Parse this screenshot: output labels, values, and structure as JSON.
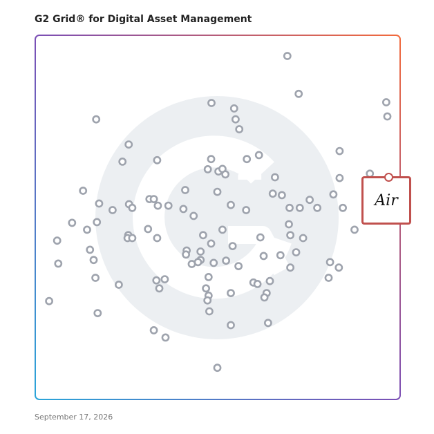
{
  "header": {
    "title": "G2 Grid® for Digital Asset Management"
  },
  "footer": {
    "date": "September 17, 2026"
  },
  "featured": {
    "name": "Air",
    "logo_text": "Air",
    "highlight_color": "#c0504d"
  },
  "colors": {
    "point_stroke": "#9ea3ad",
    "watermark": "#eceff2",
    "axis_line": "#8a63a8"
  },
  "chart_data": {
    "type": "scatter",
    "title": "G2 Grid® for Digital Asset Management",
    "xlabel": "",
    "ylabel": "",
    "xlim": [
      0,
      100
    ],
    "ylim": [
      0,
      100
    ],
    "grid": false,
    "points": [
      {
        "x": 69.1,
        "y": 94.3
      },
      {
        "x": 72.2,
        "y": 83.9
      },
      {
        "x": 48.3,
        "y": 81.4
      },
      {
        "x": 54.5,
        "y": 79.9
      },
      {
        "x": 54.9,
        "y": 76.9
      },
      {
        "x": 55.9,
        "y": 74.2
      },
      {
        "x": 16.7,
        "y": 76.9
      },
      {
        "x": 96.2,
        "y": 81.6
      },
      {
        "x": 96.5,
        "y": 77.7
      },
      {
        "x": 25.6,
        "y": 70.0
      },
      {
        "x": 61.3,
        "y": 67.1
      },
      {
        "x": 58.0,
        "y": 66.0
      },
      {
        "x": 83.4,
        "y": 68.2
      },
      {
        "x": 48.2,
        "y": 66.0
      },
      {
        "x": 23.9,
        "y": 65.3
      },
      {
        "x": 33.4,
        "y": 65.7
      },
      {
        "x": 47.3,
        "y": 63.2
      },
      {
        "x": 50.2,
        "y": 62.6
      },
      {
        "x": 51.3,
        "y": 63.3
      },
      {
        "x": 52.1,
        "y": 61.8
      },
      {
        "x": 65.7,
        "y": 61.0
      },
      {
        "x": 83.4,
        "y": 60.8
      },
      {
        "x": 91.7,
        "y": 62.0
      },
      {
        "x": 13.1,
        "y": 57.3
      },
      {
        "x": 41.1,
        "y": 57.5
      },
      {
        "x": 49.9,
        "y": 57.0
      },
      {
        "x": 65.1,
        "y": 56.5
      },
      {
        "x": 67.6,
        "y": 56.1
      },
      {
        "x": 81.7,
        "y": 56.3
      },
      {
        "x": 75.2,
        "y": 54.8
      },
      {
        "x": 31.3,
        "y": 55.0
      },
      {
        "x": 32.5,
        "y": 55.0
      },
      {
        "x": 17.5,
        "y": 53.8
      },
      {
        "x": 25.7,
        "y": 53.6
      },
      {
        "x": 26.6,
        "y": 52.6
      },
      {
        "x": 33.6,
        "y": 53.2
      },
      {
        "x": 36.5,
        "y": 53.2
      },
      {
        "x": 40.6,
        "y": 52.3
      },
      {
        "x": 53.6,
        "y": 53.4
      },
      {
        "x": 57.8,
        "y": 52.0
      },
      {
        "x": 69.7,
        "y": 52.6
      },
      {
        "x": 72.5,
        "y": 52.6
      },
      {
        "x": 77.3,
        "y": 52.6
      },
      {
        "x": 84.3,
        "y": 52.6
      },
      {
        "x": 21.2,
        "y": 52.0
      },
      {
        "x": 43.4,
        "y": 50.4
      },
      {
        "x": 10.1,
        "y": 48.5
      },
      {
        "x": 16.9,
        "y": 48.7
      },
      {
        "x": 69.5,
        "y": 48.1
      },
      {
        "x": 87.5,
        "y": 46.6
      },
      {
        "x": 14.2,
        "y": 46.6
      },
      {
        "x": 30.9,
        "y": 46.8
      },
      {
        "x": 51.3,
        "y": 46.6
      },
      {
        "x": 6.0,
        "y": 43.6
      },
      {
        "x": 25.5,
        "y": 45.1
      },
      {
        "x": 25.3,
        "y": 44.3
      },
      {
        "x": 26.6,
        "y": 44.3
      },
      {
        "x": 33.4,
        "y": 44.3
      },
      {
        "x": 46.0,
        "y": 45.1
      },
      {
        "x": 48.2,
        "y": 42.8
      },
      {
        "x": 54.1,
        "y": 42.1
      },
      {
        "x": 61.7,
        "y": 44.5
      },
      {
        "x": 69.9,
        "y": 45.1
      },
      {
        "x": 73.4,
        "y": 44.3
      },
      {
        "x": 15.0,
        "y": 41.1
      },
      {
        "x": 41.5,
        "y": 40.9
      },
      {
        "x": 41.3,
        "y": 39.8
      },
      {
        "x": 45.3,
        "y": 40.6
      },
      {
        "x": 62.6,
        "y": 39.4
      },
      {
        "x": 67.2,
        "y": 39.6
      },
      {
        "x": 71.5,
        "y": 40.4
      },
      {
        "x": 16.0,
        "y": 38.3
      },
      {
        "x": 45.3,
        "y": 38.3
      },
      {
        "x": 6.3,
        "y": 37.3
      },
      {
        "x": 42.9,
        "y": 37.2
      },
      {
        "x": 44.6,
        "y": 37.7
      },
      {
        "x": 48.9,
        "y": 37.5
      },
      {
        "x": 52.3,
        "y": 38.1
      },
      {
        "x": 55.7,
        "y": 36.6
      },
      {
        "x": 69.9,
        "y": 36.2
      },
      {
        "x": 80.8,
        "y": 37.7
      },
      {
        "x": 83.2,
        "y": 36.2
      },
      {
        "x": 16.5,
        "y": 33.4
      },
      {
        "x": 33.2,
        "y": 32.7
      },
      {
        "x": 35.5,
        "y": 33.0
      },
      {
        "x": 47.5,
        "y": 33.6
      },
      {
        "x": 59.8,
        "y": 32.1
      },
      {
        "x": 60.9,
        "y": 31.7
      },
      {
        "x": 64.3,
        "y": 32.5
      },
      {
        "x": 80.4,
        "y": 33.4
      },
      {
        "x": 22.9,
        "y": 31.5
      },
      {
        "x": 34.0,
        "y": 30.5
      },
      {
        "x": 46.8,
        "y": 30.5
      },
      {
        "x": 53.6,
        "y": 29.2
      },
      {
        "x": 63.4,
        "y": 29.2
      },
      {
        "x": 47.5,
        "y": 28.5
      },
      {
        "x": 62.8,
        "y": 28.0
      },
      {
        "x": 47.2,
        "y": 27.2
      },
      {
        "x": 3.8,
        "y": 27.0
      },
      {
        "x": 47.7,
        "y": 24.2
      },
      {
        "x": 17.1,
        "y": 23.7
      },
      {
        "x": 53.6,
        "y": 20.4
      },
      {
        "x": 63.8,
        "y": 21.0
      },
      {
        "x": 32.5,
        "y": 19.0
      },
      {
        "x": 35.7,
        "y": 17.0
      },
      {
        "x": 49.9,
        "y": 8.7
      }
    ],
    "highlighted_point": {
      "name": "Air",
      "x": 96.2,
      "y": 60.3
    }
  }
}
